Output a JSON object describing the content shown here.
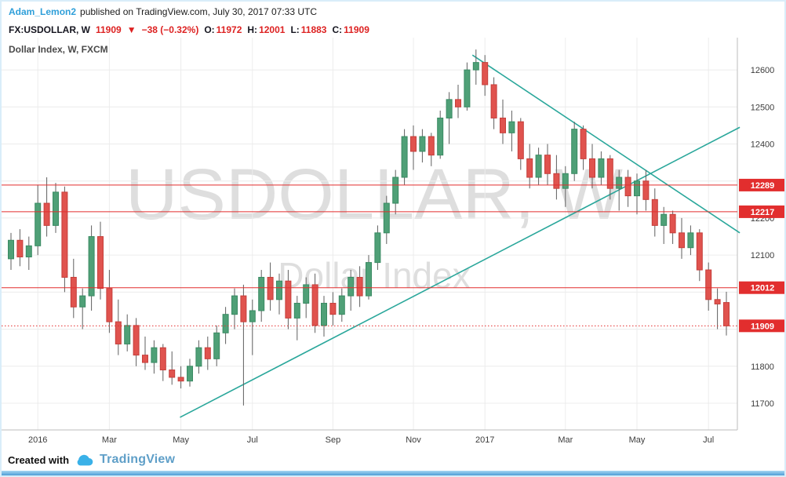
{
  "colors": {
    "link_blue": "#2f9fd9",
    "value_red": "#dd2222",
    "candle_up": "#4fa077",
    "candle_up_border": "#3a8a63",
    "candle_down": "#e0534e",
    "candle_down_border": "#c53f3b",
    "wick": "#5f5f5f",
    "trendline": "#2aa79b",
    "level_red": "#e22e2e",
    "grid": "#ececec",
    "axis_border": "#bcbcbc",
    "axis_text": "#3c3c3c",
    "brand_cloud": "#3ab1e8",
    "brand_text": "#5f9fc8",
    "frame_blue": "#d9edf9"
  },
  "attribution": {
    "author": "Adam_Lemon2",
    "text": "published on TradingView.com, July 30, 2017 07:33 UTC"
  },
  "symbol_bar": {
    "symbol": "FX:USDOLLAR, W",
    "last": "11909",
    "arrow": "▼",
    "change": "−38 (−0.32%)",
    "o_label": "O:",
    "o_value": "11972",
    "h_label": "H:",
    "h_value": "12001",
    "l_label": "L:",
    "l_value": "11883",
    "c_label": "C:",
    "c_value": "11909"
  },
  "chart": {
    "legend": "Dollar Index, W, FXCM",
    "watermark_title": "USDOLLAR, W",
    "watermark_subtitle": "Dollar Index"
  },
  "footer": {
    "created_with": "Created with",
    "brand": "TradingView"
  },
  "chart_data": {
    "type": "candlestick",
    "title": "Dollar Index (FX:USDOLLAR), Weekly, FXCM",
    "ylim": [
      11628,
      12687
    ],
    "grid_price_min": 11700,
    "grid_price_max": 12600,
    "grid_step": 100,
    "y_ticks": [
      12600,
      12500,
      12400,
      12200,
      12100,
      11800,
      11700
    ],
    "x_ticks": [
      {
        "i": 3,
        "label": "2016"
      },
      {
        "i": 11,
        "label": "Mar"
      },
      {
        "i": 19,
        "label": "May"
      },
      {
        "i": 27,
        "label": "Jul"
      },
      {
        "i": 36,
        "label": "Sep"
      },
      {
        "i": 45,
        "label": "Nov"
      },
      {
        "i": 53,
        "label": "2017"
      },
      {
        "i": 62,
        "label": "Mar"
      },
      {
        "i": 70,
        "label": "May"
      },
      {
        "i": 78,
        "label": "Jul"
      }
    ],
    "levels": [
      {
        "price": 12289,
        "style": "solid"
      },
      {
        "price": 12217,
        "style": "solid"
      },
      {
        "price": 12012,
        "style": "solid"
      },
      {
        "price": 11909,
        "style": "dotted"
      }
    ],
    "trendlines": [
      {
        "name": "ascending-support",
        "from": [
          18.9,
          11662
        ],
        "to": [
          81.5,
          12445
        ]
      },
      {
        "name": "descending-resistance",
        "from": [
          51.6,
          12640
        ],
        "to": [
          81.5,
          12160
        ]
      }
    ],
    "candles": [
      [
        12090,
        12160,
        12060,
        12140
      ],
      [
        12140,
        12170,
        12070,
        12095
      ],
      [
        12095,
        12150,
        12060,
        12125
      ],
      [
        12125,
        12290,
        12100,
        12240
      ],
      [
        12240,
        12310,
        12150,
        12180
      ],
      [
        12180,
        12295,
        12160,
        12270
      ],
      [
        12270,
        12285,
        12000,
        12040
      ],
      [
        12040,
        12090,
        11930,
        11960
      ],
      [
        11960,
        12010,
        11900,
        11990
      ],
      [
        11990,
        12180,
        11950,
        12150
      ],
      [
        12150,
        12190,
        11980,
        12010
      ],
      [
        12010,
        12060,
        11890,
        11920
      ],
      [
        11920,
        11980,
        11830,
        11860
      ],
      [
        11860,
        11940,
        11840,
        11910
      ],
      [
        11910,
        11930,
        11800,
        11830
      ],
      [
        11830,
        11880,
        11790,
        11810
      ],
      [
        11810,
        11870,
        11780,
        11850
      ],
      [
        11850,
        11860,
        11760,
        11790
      ],
      [
        11790,
        11840,
        11750,
        11770
      ],
      [
        11770,
        11800,
        11740,
        11760
      ],
      [
        11760,
        11820,
        11745,
        11800
      ],
      [
        11800,
        11870,
        11780,
        11850
      ],
      [
        11850,
        11880,
        11790,
        11820
      ],
      [
        11820,
        11910,
        11800,
        11890
      ],
      [
        11890,
        11960,
        11860,
        11940
      ],
      [
        11940,
        12010,
        11900,
        11990
      ],
      [
        11990,
        12020,
        11694,
        11920
      ],
      [
        11920,
        11980,
        11830,
        11950
      ],
      [
        11950,
        12060,
        11920,
        12040
      ],
      [
        12040,
        12080,
        11950,
        11980
      ],
      [
        11980,
        12050,
        11940,
        12030
      ],
      [
        12030,
        12060,
        11900,
        11930
      ],
      [
        11930,
        11990,
        11870,
        11970
      ],
      [
        11970,
        12040,
        11930,
        12020
      ],
      [
        12020,
        12050,
        11890,
        11910
      ],
      [
        11910,
        11990,
        11880,
        11970
      ],
      [
        11970,
        12000,
        11910,
        11940
      ],
      [
        11940,
        12010,
        11920,
        11990
      ],
      [
        11990,
        12060,
        11950,
        12040
      ],
      [
        12040,
        12070,
        11960,
        11990
      ],
      [
        11990,
        12100,
        11980,
        12080
      ],
      [
        12080,
        12180,
        12060,
        12160
      ],
      [
        12160,
        12260,
        12130,
        12240
      ],
      [
        12240,
        12330,
        12210,
        12310
      ],
      [
        12310,
        12440,
        12290,
        12420
      ],
      [
        12420,
        12450,
        12330,
        12380
      ],
      [
        12380,
        12440,
        12350,
        12420
      ],
      [
        12420,
        12430,
        12340,
        12370
      ],
      [
        12370,
        12490,
        12360,
        12470
      ],
      [
        12470,
        12540,
        12400,
        12520
      ],
      [
        12520,
        12560,
        12470,
        12500
      ],
      [
        12500,
        12620,
        12490,
        12600
      ],
      [
        12600,
        12655,
        12560,
        12620
      ],
      [
        12620,
        12640,
        12530,
        12560
      ],
      [
        12560,
        12580,
        12440,
        12470
      ],
      [
        12470,
        12520,
        12400,
        12430
      ],
      [
        12430,
        12490,
        12380,
        12460
      ],
      [
        12460,
        12470,
        12330,
        12360
      ],
      [
        12360,
        12400,
        12280,
        12310
      ],
      [
        12310,
        12390,
        12290,
        12370
      ],
      [
        12370,
        12400,
        12290,
        12320
      ],
      [
        12320,
        12370,
        12250,
        12280
      ],
      [
        12280,
        12340,
        12230,
        12320
      ],
      [
        12320,
        12460,
        12300,
        12440
      ],
      [
        12440,
        12450,
        12330,
        12360
      ],
      [
        12360,
        12400,
        12280,
        12310
      ],
      [
        12310,
        12380,
        12290,
        12360
      ],
      [
        12360,
        12370,
        12250,
        12280
      ],
      [
        12280,
        12330,
        12220,
        12310
      ],
      [
        12310,
        12330,
        12230,
        12260
      ],
      [
        12260,
        12320,
        12210,
        12300
      ],
      [
        12300,
        12330,
        12220,
        12250
      ],
      [
        12250,
        12280,
        12150,
        12180
      ],
      [
        12180,
        12230,
        12130,
        12210
      ],
      [
        12210,
        12220,
        12130,
        12160
      ],
      [
        12160,
        12200,
        12090,
        12120
      ],
      [
        12120,
        12180,
        12100,
        12160
      ],
      [
        12160,
        12170,
        12030,
        12060
      ],
      [
        12060,
        12080,
        11950,
        11980
      ],
      [
        11980,
        12010,
        11900,
        11968
      ],
      [
        11972,
        12001,
        11883,
        11909
      ]
    ]
  }
}
